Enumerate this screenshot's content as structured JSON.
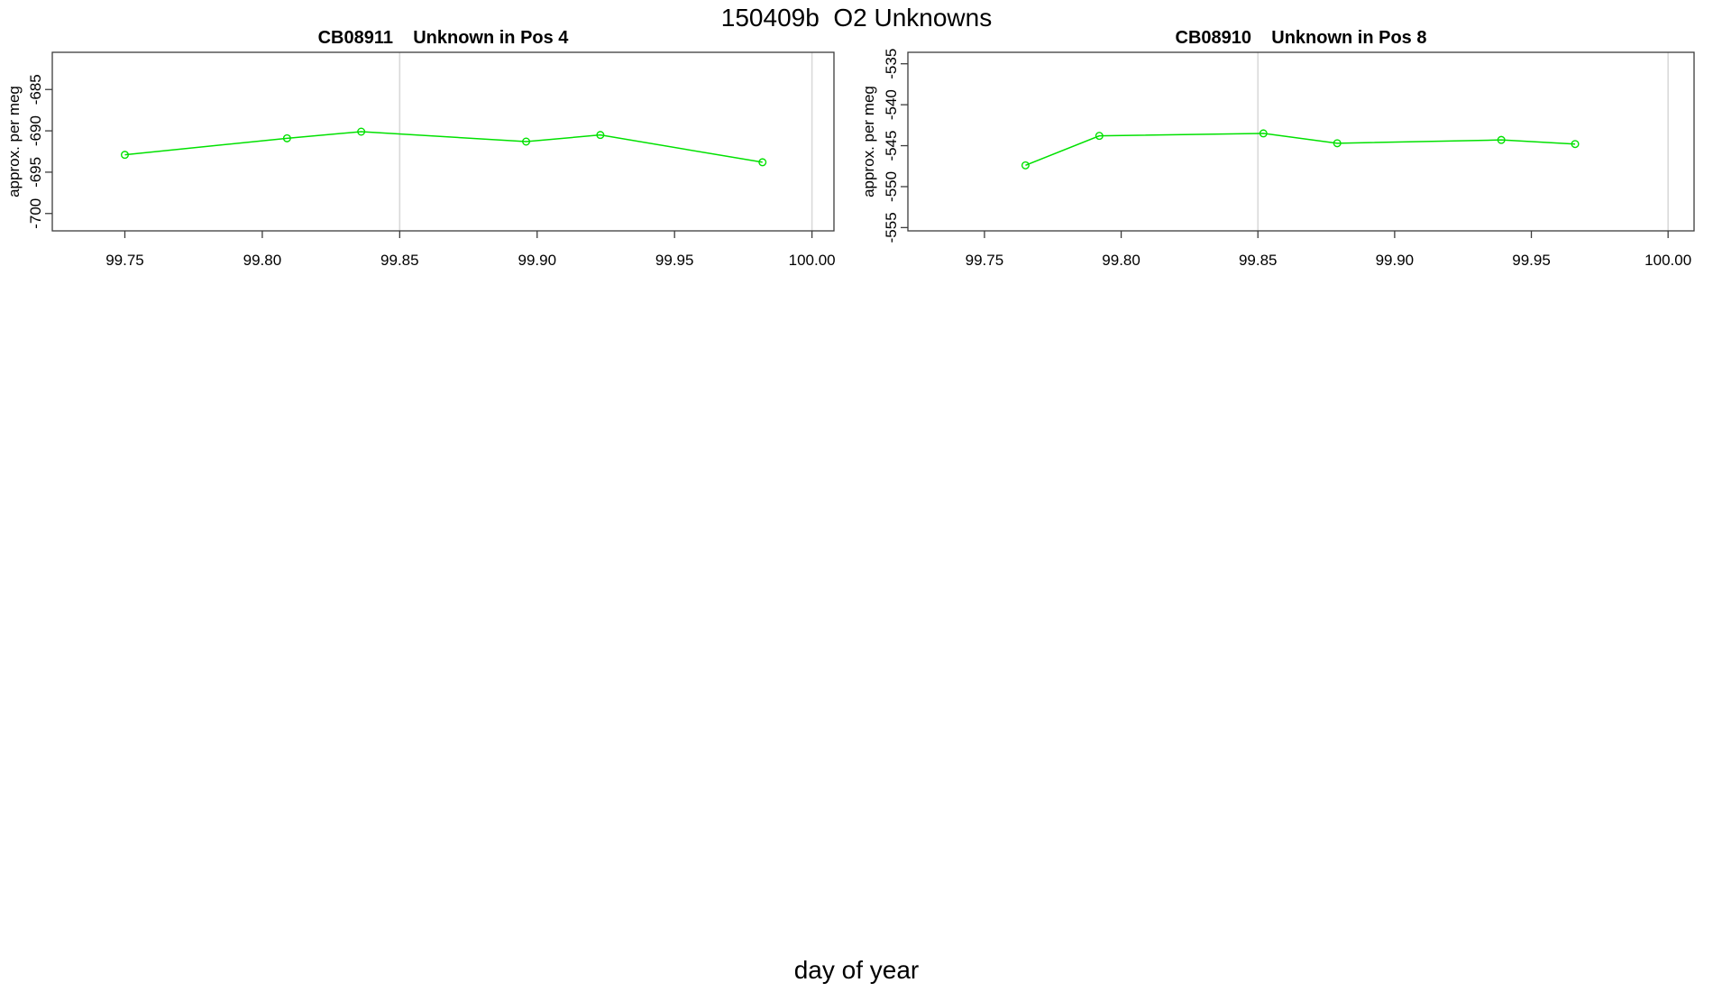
{
  "figure": {
    "title": "150409b  O2 Unknowns",
    "xlabel": "day of year",
    "background": "#ffffff"
  },
  "colors": {
    "series": "#00e100",
    "gridline": "#d9d9d9",
    "axis": "#3c3c3c",
    "text": "#000000"
  },
  "chart_data": [
    {
      "type": "line",
      "title": "CB08911    Unknown in Pos 4",
      "ylabel": "approx. per meg",
      "xlabel": "day of year",
      "legend": "none",
      "grid": "vertical-gridlines-only",
      "marker": "open-circle",
      "series": [
        {
          "name": "CB08911 unknown in pos 4",
          "x": [
            99.75,
            99.809,
            99.836,
            99.896,
            99.923,
            99.982
          ],
          "y": [
            -692.9,
            -690.9,
            -690.1,
            -691.3,
            -690.5,
            -693.8
          ]
        }
      ],
      "xlim": [
        99.7236,
        100.008
      ],
      "ylim": [
        -702.1,
        -680.5
      ],
      "xticks": {
        "values": [
          99.75,
          99.8,
          99.85,
          99.9,
          99.95,
          100.0
        ],
        "labels": [
          "99.75",
          "99.80",
          "99.85",
          "99.90",
          "99.95",
          "100.00"
        ]
      },
      "yticks": {
        "values": [
          -685,
          -690,
          -695,
          -700
        ],
        "labels": [
          "-685",
          "-690",
          "-695",
          "-700"
        ]
      },
      "gridlines_x": [
        99.85,
        100.0
      ]
    },
    {
      "type": "line",
      "title": "CB08910    Unknown in Pos 8",
      "ylabel": "approx. per meg",
      "xlabel": "day of year",
      "legend": "none",
      "grid": "vertical-gridlines-only",
      "marker": "open-circle",
      "series": [
        {
          "name": "CB08910 unknown in pos 8",
          "x": [
            99.765,
            99.792,
            99.852,
            99.879,
            99.939,
            99.966
          ],
          "y": [
            -547.4,
            -543.8,
            -543.5,
            -544.7,
            -544.3,
            -544.8
          ]
        }
      ],
      "xlim": [
        99.722,
        100.0095
      ],
      "ylim": [
        -555.4,
        -533.6
      ],
      "xticks": {
        "values": [
          99.75,
          99.8,
          99.85,
          99.9,
          99.95,
          100.0
        ],
        "labels": [
          "99.75",
          "99.80",
          "99.85",
          "99.90",
          "99.95",
          "100.00"
        ]
      },
      "yticks": {
        "values": [
          -535,
          -540,
          -545,
          -550,
          -555
        ],
        "labels": [
          "-535",
          "-540",
          "-545",
          "-550",
          "-555"
        ]
      },
      "gridlines_x": [
        99.85,
        100.0
      ]
    }
  ]
}
